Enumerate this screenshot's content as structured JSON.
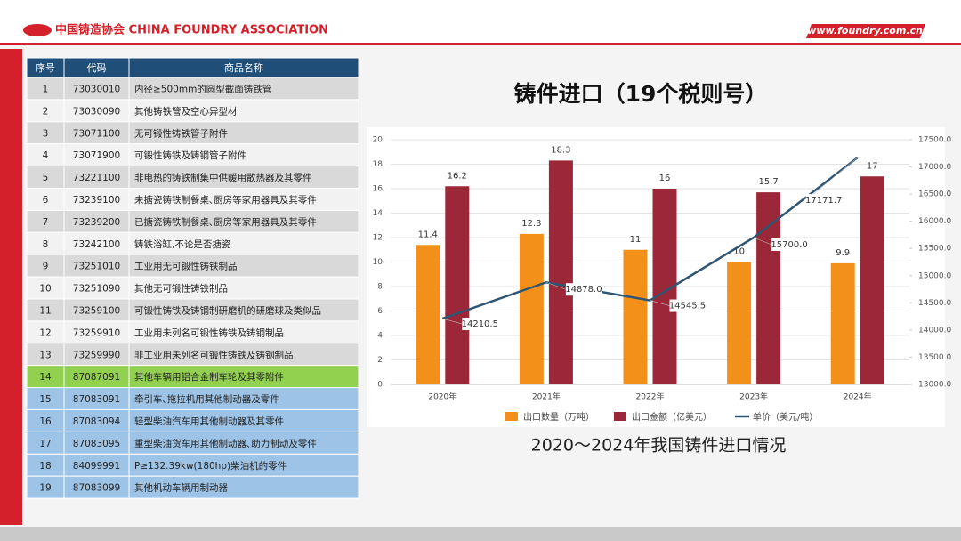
{
  "header": {
    "logo": "中国铸造协会 CHINA FOUNDRY ASSOCIATION",
    "site": "www.foundry.com.cn"
  },
  "table": {
    "columns": [
      "序号",
      "代码",
      "商品名称"
    ],
    "rows": [
      [
        "1",
        "73030010",
        "内径≥500mm的圆型截面铸铁管"
      ],
      [
        "2",
        "73030090",
        "其他铸铁管及空心异型材"
      ],
      [
        "3",
        "73071100",
        "无可锻性铸铁管子附件"
      ],
      [
        "4",
        "73071900",
        "可锻性铸铁及铸钢管子附件"
      ],
      [
        "5",
        "73221100",
        "非电热的铸铁制集中供暖用散热器及其零件"
      ],
      [
        "6",
        "73239100",
        "未搪瓷铸铁制餐桌､厨房等家用器具及其零件"
      ],
      [
        "7",
        "73239200",
        "已搪瓷铸铁制餐桌､厨房等家用器具及其零件"
      ],
      [
        "8",
        "73242100",
        "铸铁浴缸,不论是否搪瓷"
      ],
      [
        "9",
        "73251010",
        "工业用无可锻性铸铁制品"
      ],
      [
        "10",
        "73251090",
        "其他无可锻性铸铁制品"
      ],
      [
        "11",
        "73259100",
        "可锻性铸铁及铸钢制研磨机的研磨球及类似品"
      ],
      [
        "12",
        "73259910",
        "工业用未列名可锻性铸铁及铸钢制品"
      ],
      [
        "13",
        "73259990",
        "非工业用未列名可锻性铸铁及铸钢制品"
      ],
      [
        "14",
        "87087091",
        "其他车辆用铝合金制车轮及其零附件"
      ],
      [
        "15",
        "87083091",
        "牵引车､拖拉机用其他制动器及零件"
      ],
      [
        "16",
        "87083094",
        "轻型柴油汽车用其他制动器及其零件"
      ],
      [
        "17",
        "87083095",
        "重型柴油货车用其他制动器､助力制动及零件"
      ],
      [
        "18",
        "84099991",
        "P≥132.39kw(180hp)柴油机的零件"
      ],
      [
        "19",
        "87083099",
        "其他机动车辆用制动器"
      ]
    ]
  },
  "chart_data": {
    "type": "bar",
    "title": "铸件进口（19个税则号）",
    "caption": "2020～2024年我国铸件进口情况",
    "categories": [
      "2020年",
      "2021年",
      "2022年",
      "2023年",
      "2024年"
    ],
    "series": [
      {
        "name": "出口数量（万吨）",
        "color": "#f39019",
        "values": [
          11.4,
          12.3,
          11,
          10,
          9.9
        ]
      },
      {
        "name": "出口金额（亿美元）",
        "color": "#9b2738",
        "values": [
          16.2,
          18.3,
          16,
          15.7,
          17
        ]
      },
      {
        "name": "单价（美元/吨）",
        "color": "#2f5573",
        "type": "line",
        "axis": "y2",
        "values": [
          14210.5,
          14878.0,
          14545.5,
          15700.0,
          17171.7
        ],
        "value_labels": [
          "14210.5",
          "14878.0",
          "14545.5",
          "15700.0",
          "17171.7"
        ]
      }
    ],
    "ylim": [
      0,
      20
    ],
    "yticks": [
      0,
      2,
      4,
      6,
      8,
      10,
      12,
      14,
      16,
      18,
      20
    ],
    "y2lim": [
      13000,
      17500
    ],
    "y2ticks": [
      {
        "value": 13000,
        "label": "13000.0"
      },
      {
        "value": 13500,
        "label": "13500.0"
      },
      {
        "value": 14000,
        "label": "14000.0"
      },
      {
        "value": 14500,
        "label": "14500.0"
      },
      {
        "value": 15000,
        "label": "15000.0"
      },
      {
        "value": 15500,
        "label": "15500.0"
      },
      {
        "value": 16000,
        "label": "16000.0"
      },
      {
        "value": 16500,
        "label": "16500.0"
      },
      {
        "value": 17000,
        "label": "17000.0"
      },
      {
        "value": 17500,
        "label": "17500.0"
      }
    ],
    "legend": "bottom"
  }
}
